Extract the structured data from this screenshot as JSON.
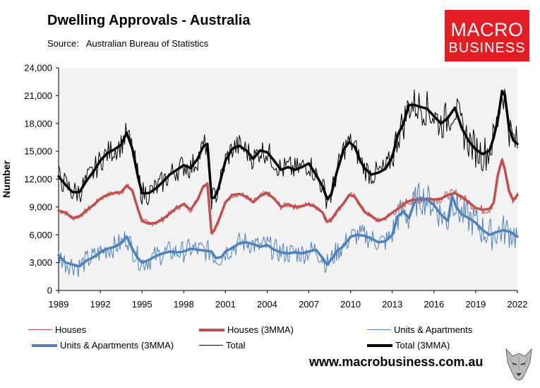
{
  "title": "Dwelling Approvals - Australia",
  "source_label": "Source:",
  "source_text": "Australian Bureau of Statistics",
  "logo": {
    "line1": "MACRO",
    "line2": "BUSINESS",
    "bg": "#e21e24"
  },
  "url": "www.macrobusiness.com.au",
  "colors": {
    "houses": "#c0504d",
    "units": "#4f81bd",
    "total": "#000000",
    "plot_bg": "#f2f2f2"
  },
  "chart_data": {
    "type": "line",
    "title": "Dwelling Approvals - Australia",
    "xlabel": "",
    "ylabel": "Number",
    "xlim": [
      1989,
      2022
    ],
    "ylim": [
      0,
      24000
    ],
    "x_ticks": [
      "1989",
      "1992",
      "1995",
      "1998",
      "2001",
      "2004",
      "2007",
      "2010",
      "2013",
      "2016",
      "2019",
      "2022"
    ],
    "y_ticks": [
      "0",
      "3,000",
      "6,000",
      "9,000",
      "12,000",
      "15,000",
      "18,000",
      "21,000",
      "24,000"
    ],
    "legend": [
      {
        "name": "Houses",
        "series": "houses",
        "style": "thin"
      },
      {
        "name": "Houses (3MMA)",
        "series": "houses",
        "style": "thick"
      },
      {
        "name": "Units & Apartments",
        "series": "units",
        "style": "thin"
      },
      {
        "name": "Units & Apartments (3MMA)",
        "series": "units",
        "style": "thick"
      },
      {
        "name": "Total",
        "series": "total",
        "style": "thin"
      },
      {
        "name": "Total (3MMA)",
        "series": "total",
        "style": "thick"
      }
    ],
    "series": [
      {
        "name": "Houses (3MMA)",
        "key": "houses",
        "x": [
          1989.0,
          1989.5,
          1990.0,
          1990.5,
          1991.0,
          1991.5,
          1992.0,
          1992.5,
          1993.0,
          1993.5,
          1993.9,
          1994.3,
          1994.7,
          1995.0,
          1995.5,
          1996.0,
          1996.5,
          1997.0,
          1997.5,
          1998.0,
          1998.5,
          1999.0,
          1999.4,
          1999.7,
          2000.0,
          2000.2,
          2000.5,
          2001.0,
          2001.5,
          2002.0,
          2002.5,
          2003.0,
          2003.5,
          2004.0,
          2004.5,
          2005.0,
          2005.5,
          2006.0,
          2006.5,
          2007.0,
          2007.5,
          2008.0,
          2008.3,
          2008.6,
          2009.0,
          2009.5,
          2009.9,
          2010.3,
          2010.7,
          2011.0,
          2011.5,
          2012.0,
          2012.5,
          2013.0,
          2013.5,
          2014.0,
          2014.5,
          2015.0,
          2015.5,
          2016.0,
          2016.5,
          2017.0,
          2017.5,
          2018.0,
          2018.5,
          2019.0,
          2019.5,
          2020.0,
          2020.3,
          2020.6,
          2020.9,
          2021.1,
          2021.4,
          2021.7,
          2022.0
        ],
        "y": [
          8600,
          8400,
          7800,
          8000,
          8600,
          9200,
          9900,
          10300,
          10500,
          10600,
          11300,
          10800,
          8800,
          7500,
          7200,
          7300,
          7700,
          8300,
          8900,
          9300,
          8700,
          9800,
          11200,
          11500,
          6200,
          6500,
          7500,
          9500,
          10300,
          10400,
          10100,
          9500,
          10200,
          10500,
          9900,
          9000,
          9300,
          9000,
          9100,
          9300,
          9000,
          8400,
          7400,
          7600,
          8500,
          9400,
          10300,
          10100,
          9200,
          8500,
          8000,
          7500,
          7800,
          8400,
          8900,
          9500,
          9800,
          9800,
          9900,
          9800,
          9900,
          10300,
          10500,
          10100,
          9500,
          8900,
          8700,
          8800,
          9500,
          12500,
          14100,
          13000,
          10700,
          9700,
          10300
        ]
      },
      {
        "name": "Units & Apartments (3MMA)",
        "key": "units",
        "x": [
          1989.0,
          1989.5,
          1990.0,
          1990.5,
          1991.0,
          1991.5,
          1992.0,
          1992.5,
          1993.0,
          1993.5,
          1993.9,
          1994.3,
          1994.7,
          1995.0,
          1995.5,
          1996.0,
          1996.5,
          1997.0,
          1997.5,
          1998.0,
          1998.5,
          1999.0,
          1999.5,
          2000.0,
          2000.3,
          2000.7,
          2001.0,
          2001.5,
          2002.0,
          2002.5,
          2003.0,
          2003.5,
          2004.0,
          2004.5,
          2005.0,
          2005.5,
          2006.0,
          2006.5,
          2007.0,
          2007.5,
          2008.0,
          2008.3,
          2008.7,
          2009.0,
          2009.5,
          2010.0,
          2010.5,
          2011.0,
          2011.5,
          2012.0,
          2012.5,
          2013.0,
          2013.4,
          2013.8,
          2014.2,
          2014.6,
          2015.0,
          2015.5,
          2016.0,
          2016.5,
          2017.0,
          2017.3,
          2017.6,
          2018.0,
          2018.5,
          2019.0,
          2019.5,
          2020.0,
          2020.5,
          2021.0,
          2021.5,
          2022.0
        ],
        "y": [
          3800,
          3000,
          2800,
          2600,
          3200,
          3600,
          4100,
          4500,
          4700,
          5100,
          5800,
          4500,
          3500,
          3000,
          3300,
          3700,
          4000,
          4200,
          4100,
          4200,
          4500,
          4400,
          4300,
          4200,
          3500,
          3600,
          4200,
          4600,
          5100,
          5200,
          5000,
          4700,
          4900,
          4400,
          4100,
          4000,
          4100,
          4000,
          4200,
          4400,
          3500,
          2800,
          3500,
          4200,
          4800,
          5800,
          6000,
          5900,
          5600,
          5200,
          5300,
          6000,
          8000,
          8500,
          7800,
          9500,
          10000,
          9800,
          9200,
          8200,
          7500,
          10200,
          9000,
          8200,
          7800,
          7300,
          6500,
          6000,
          6300,
          6500,
          6300,
          5800
        ]
      },
      {
        "name": "Total (3MMA)",
        "key": "total",
        "x": [
          1989.0,
          1989.5,
          1990.0,
          1990.5,
          1991.0,
          1991.5,
          1992.0,
          1992.5,
          1993.0,
          1993.5,
          1993.9,
          1994.3,
          1994.7,
          1995.0,
          1995.5,
          1996.0,
          1996.5,
          1997.0,
          1997.5,
          1998.0,
          1998.5,
          1999.0,
          1999.4,
          1999.7,
          2000.0,
          2000.2,
          2000.5,
          2001.0,
          2001.5,
          2002.0,
          2002.5,
          2003.0,
          2003.5,
          2004.0,
          2004.5,
          2005.0,
          2005.5,
          2006.0,
          2006.5,
          2007.0,
          2007.5,
          2008.0,
          2008.3,
          2008.6,
          2009.0,
          2009.5,
          2009.9,
          2010.3,
          2010.7,
          2011.0,
          2011.5,
          2012.0,
          2012.5,
          2013.0,
          2013.4,
          2013.8,
          2014.2,
          2014.6,
          2015.0,
          2015.5,
          2016.0,
          2016.5,
          2017.0,
          2017.5,
          2018.0,
          2018.5,
          2019.0,
          2019.5,
          2020.0,
          2020.3,
          2020.6,
          2020.9,
          2021.1,
          2021.4,
          2021.7,
          2022.0
        ],
        "y": [
          12300,
          11400,
          10600,
          10600,
          11800,
          12800,
          14000,
          14800,
          15200,
          15700,
          17000,
          15300,
          12300,
          10500,
          10500,
          11000,
          11700,
          12500,
          13000,
          13500,
          13200,
          14200,
          15500,
          15800,
          10000,
          10000,
          11000,
          14000,
          15300,
          15600,
          15100,
          14200,
          15100,
          14900,
          14000,
          13000,
          13300,
          13000,
          13300,
          13700,
          12500,
          11200,
          9900,
          10300,
          12700,
          15200,
          16000,
          15500,
          14000,
          13200,
          12500,
          12700,
          13100,
          14400,
          16800,
          18000,
          20000,
          20000,
          19800,
          19600,
          18800,
          18000,
          18600,
          19700,
          17500,
          16100,
          15200,
          14700,
          15100,
          16500,
          18500,
          21500,
          21000,
          17500,
          16200,
          15800
        ]
      }
    ]
  }
}
